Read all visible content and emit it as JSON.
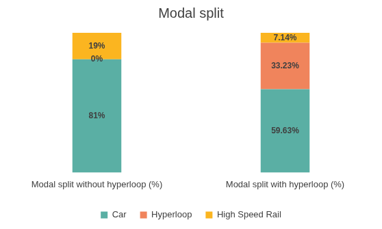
{
  "chart_data": {
    "type": "bar",
    "title": "Modal split",
    "categories": [
      "Modal split without hyperloop (%)",
      "Modal split with hyperloop (%)"
    ],
    "series": [
      {
        "name": "Car",
        "color": "#5aafa4",
        "values": [
          81,
          59.63
        ],
        "value_labels": [
          "81%",
          "59.63%"
        ]
      },
      {
        "name": "Hyperloop",
        "color": "#f0845c",
        "values": [
          0,
          33.23
        ],
        "value_labels": [
          "0%",
          "33.23%"
        ]
      },
      {
        "name": "High Speed Rail",
        "color": "#fbb520",
        "values": [
          19,
          7.14
        ],
        "value_labels": [
          "19%",
          "7.14%"
        ]
      }
    ],
    "ylim": [
      0,
      100
    ],
    "stacked": true,
    "grid": false,
    "legend": "bottom",
    "data_labels": true,
    "tick_labels": "x"
  }
}
